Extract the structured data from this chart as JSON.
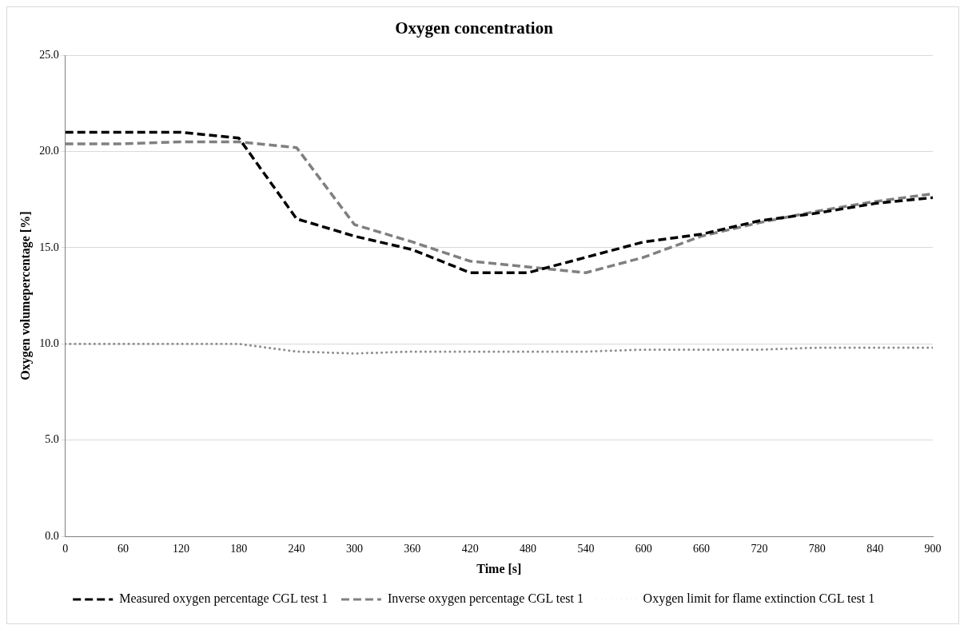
{
  "chart_data": {
    "type": "line",
    "title": "Oxygen concentration",
    "xlabel": "Time [s]",
    "ylabel": "Oxygen volumepercentage [%]",
    "x": [
      0,
      60,
      120,
      180,
      240,
      300,
      360,
      420,
      480,
      540,
      600,
      660,
      720,
      780,
      840,
      900
    ],
    "series": [
      {
        "name": "Measured oxygen percentage CGL test 1",
        "color": "#000000",
        "line_style": "dashed",
        "values": [
          21.0,
          21.0,
          21.0,
          20.7,
          16.5,
          15.6,
          14.9,
          13.7,
          13.7,
          14.5,
          15.3,
          15.7,
          16.4,
          16.8,
          17.3,
          17.6
        ]
      },
      {
        "name": "Inverse oxygen percentage CGL test 1",
        "color": "#808080",
        "line_style": "dashed",
        "values": [
          20.4,
          20.4,
          20.5,
          20.5,
          20.2,
          16.2,
          15.3,
          14.3,
          14.0,
          13.7,
          14.5,
          15.6,
          16.3,
          16.9,
          17.4,
          17.8
        ]
      },
      {
        "name": "Oxygen limit for flame extinction CGL test 1",
        "color": "#8c8c8c",
        "line_style": "dotted",
        "values": [
          10.0,
          10.0,
          10.0,
          10.0,
          9.6,
          9.5,
          9.6,
          9.6,
          9.6,
          9.6,
          9.7,
          9.7,
          9.7,
          9.8,
          9.8,
          9.8
        ]
      }
    ],
    "xlim": [
      0,
      900
    ],
    "xticks": [
      0,
      60,
      120,
      180,
      240,
      300,
      360,
      420,
      480,
      540,
      600,
      660,
      720,
      780,
      840,
      900
    ],
    "ylim": [
      0,
      25
    ],
    "yticks": [
      {
        "value": 0,
        "label": "0.0"
      },
      {
        "value": 5,
        "label": "5.0"
      },
      {
        "value": 10,
        "label": "10.0"
      },
      {
        "value": 15,
        "label": "15.0"
      },
      {
        "value": 20,
        "label": "20.0"
      },
      {
        "value": 25,
        "label": "25.0"
      }
    ],
    "grid": "y",
    "legend": "bottom",
    "marker": "none"
  }
}
